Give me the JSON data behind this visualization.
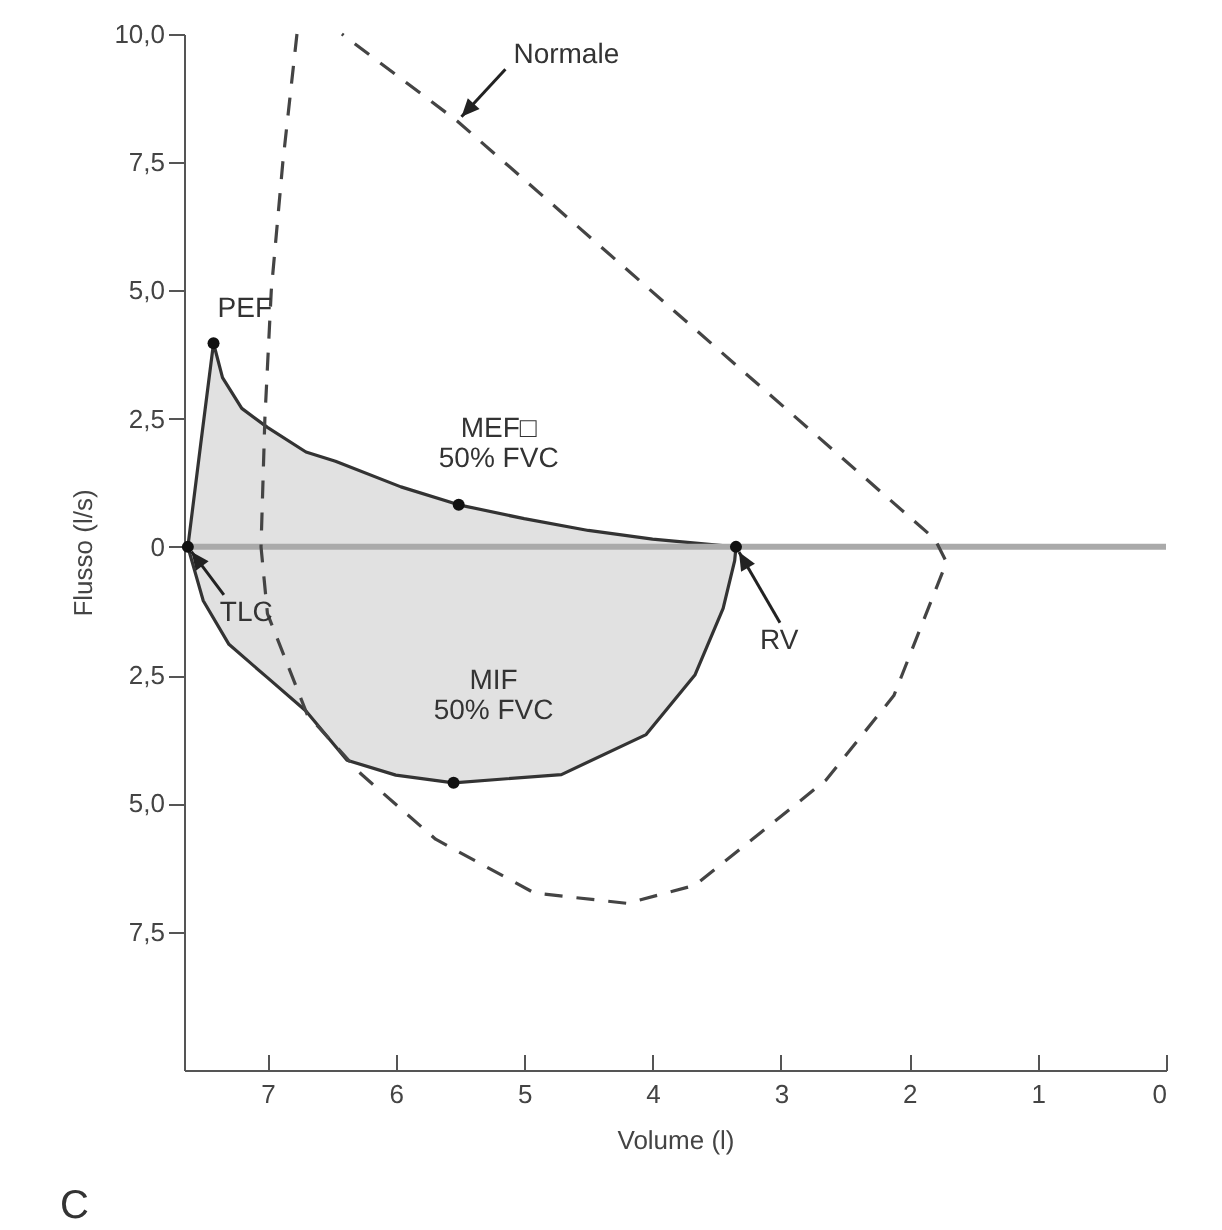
{
  "chart_data": {
    "type": "line",
    "xlabel": "Volume (l)",
    "ylabel": "Flusso (l/s)",
    "xlim": [
      7.65,
      0
    ],
    "xticks": [
      7,
      6,
      5,
      4,
      3,
      2,
      1,
      0
    ],
    "ylim": [
      -10.2,
      10
    ],
    "yticks": [
      {
        "value": 10,
        "label": "10,0"
      },
      {
        "value": 7.5,
        "label": "7,5"
      },
      {
        "value": 5,
        "label": "5,0"
      },
      {
        "value": 2.5,
        "label": "2,5"
      },
      0,
      {
        "value": -2.5,
        "label": "2,5"
      },
      {
        "value": -5,
        "label": "5,0"
      },
      {
        "value": -7.5,
        "label": "7,5"
      }
    ],
    "grid": false,
    "ref_lines": [
      {
        "axis": "y",
        "value": 0,
        "color": "#aaaaaa"
      }
    ],
    "series": [
      {
        "type": "area",
        "color": "#333333",
        "x": [
          7.62,
          7.52,
          7.42,
          7.35,
          7.2,
          7.0,
          6.7,
          6.47,
          5.96,
          5.51,
          5.0,
          4.5,
          4.0,
          3.35
        ],
        "values": [
          0,
          2.0,
          3.97,
          3.3,
          2.7,
          2.33,
          1.85,
          1.67,
          1.17,
          0.82,
          0.55,
          0.32,
          0.15,
          0
        ]
      },
      {
        "type": "area",
        "color": "#333333",
        "x": [
          7.62,
          7.5,
          7.3,
          7.0,
          6.7,
          6.38,
          6.0,
          5.55,
          4.71,
          4.05,
          3.67,
          3.45,
          3.36,
          3.35
        ],
        "values": [
          0,
          -1.05,
          -1.9,
          -2.55,
          -3.2,
          -4.16,
          -4.45,
          -4.6,
          -4.44,
          -3.66,
          -2.5,
          -1.2,
          -0.27,
          0
        ]
      },
      {
        "color": "#444444",
        "line_style": "dashed",
        "x": [
          6.77,
          6.88,
          6.97,
          7.02,
          7.05,
          7.0,
          6.69,
          6.27,
          5.69,
          4.92,
          4.2,
          3.67,
          2.65,
          2.12,
          1.71,
          1.8,
          5.52,
          6.42
        ],
        "values": [
          10,
          7.5,
          5.0,
          2.5,
          0,
          -1.3,
          -3.27,
          -4.43,
          -5.7,
          -6.75,
          -6.95,
          -6.6,
          -4.55,
          -2.9,
          -0.3,
          0.15,
          8.3,
          10
        ]
      },
      {
        "type": "scatter",
        "color": "#111111",
        "marker": "circle",
        "x": [
          7.62,
          7.42,
          5.51,
          5.55,
          3.35
        ],
        "values": [
          0,
          3.97,
          0.82,
          -4.6,
          0
        ]
      }
    ],
    "annotations": [
      {
        "text": "Normale",
        "x": 5.52,
        "y": 8.3
      },
      {
        "text": "PEF",
        "x": 7.42,
        "y": 3.97
      },
      {
        "text": "MEF□\n50% FVC",
        "x": 5.51,
        "y": 0.82
      },
      {
        "text": "MIF\n50% FVC",
        "x": 5.55,
        "y": -4.6
      },
      {
        "text": "TLC",
        "x": 7.62,
        "y": 0
      },
      {
        "text": "RV",
        "x": 3.35,
        "y": 0
      },
      "C"
    ]
  }
}
